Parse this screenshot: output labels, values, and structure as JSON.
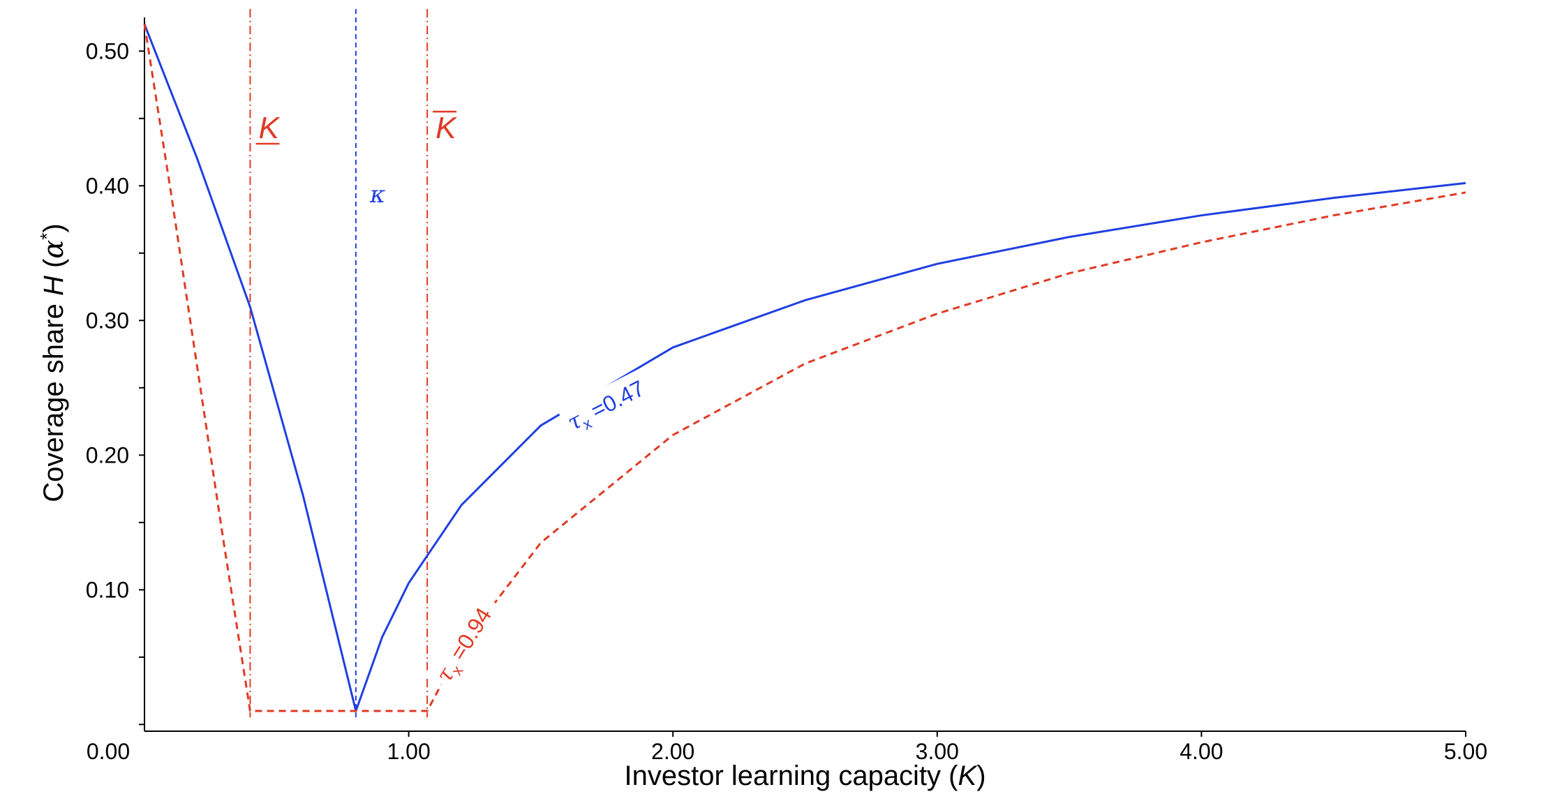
{
  "chart_data": {
    "type": "line",
    "xlabel": {
      "text": "Investor learning capacity (",
      "var": "K",
      "close": ")"
    },
    "ylabel": {
      "text": "Coverage share ",
      "var": "H",
      "open": " (",
      "alpha": "α",
      "star": "*",
      "close": ")"
    },
    "xlim": [
      0,
      5
    ],
    "ylim": [
      -0.005,
      0.525
    ],
    "x_ticks": [
      1,
      2,
      3,
      4,
      5
    ],
    "x_tick_labels": [
      "1.00",
      "2.00",
      "3.00",
      "4.00",
      "5.00"
    ],
    "x_origin_label": "0.00",
    "y_ticks": [
      0.1,
      0.2,
      0.3,
      0.4,
      0.5
    ],
    "y_tick_labels": [
      "0.10",
      "0.20",
      "0.30",
      "0.40",
      "0.50"
    ],
    "y_minor_ticks": [
      0.0,
      0.05,
      0.15,
      0.25,
      0.35,
      0.45
    ],
    "grid": false,
    "series": [
      {
        "name": "τx =0.47",
        "label_prefix": "τ",
        "label_sub": "x",
        "label_value": " =0.47",
        "color": "#1f3fe0",
        "style": "solid",
        "x": [
          0.0,
          0.2,
          0.4,
          0.6,
          0.8,
          0.9,
          1.0,
          1.2,
          1.5,
          2.0,
          2.5,
          3.0,
          3.5,
          4.0,
          4.5,
          5.0
        ],
        "y": [
          0.52,
          0.42,
          0.31,
          0.17,
          0.01,
          0.065,
          0.105,
          0.163,
          0.222,
          0.28,
          0.315,
          0.342,
          0.362,
          0.378,
          0.391,
          0.402
        ]
      },
      {
        "name": "τx =0.94",
        "label_prefix": "τ",
        "label_sub": "x",
        "label_value": " =0.94",
        "color": "#e03a24",
        "style": "dashed",
        "x": [
          0.0,
          0.1,
          0.2,
          0.3,
          0.4,
          0.6,
          0.8,
          1.0,
          1.07,
          1.2,
          1.5,
          2.0,
          2.5,
          3.0,
          3.5,
          4.0,
          4.5,
          5.0
        ],
        "y": [
          0.52,
          0.395,
          0.265,
          0.135,
          0.01,
          0.01,
          0.01,
          0.01,
          0.01,
          0.058,
          0.135,
          0.215,
          0.268,
          0.305,
          0.335,
          0.358,
          0.378,
          0.395
        ]
      }
    ],
    "vlines": [
      {
        "x": 0.4,
        "label": "K",
        "decoration": "underline",
        "color": "#e03a24",
        "style": "dashdot"
      },
      {
        "x": 0.8,
        "label": "κ",
        "decoration": "none",
        "color": "#1f3fe0",
        "style": "dashed"
      },
      {
        "x": 1.07,
        "label": "K",
        "decoration": "overline",
        "color": "#e03a24",
        "style": "dashdot"
      }
    ]
  }
}
